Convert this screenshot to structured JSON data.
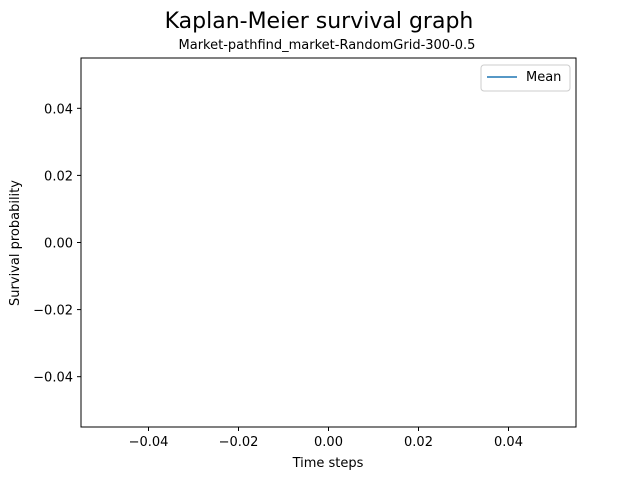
{
  "chart_data": {
    "type": "line",
    "title": "Kaplan-Meier survival graph",
    "subtitle": "Market-pathfind_market-RandomGrid-300-0.5",
    "xlabel": "Time steps",
    "ylabel": "Survival probability",
    "xlim": [
      -0.055,
      0.055
    ],
    "ylim": [
      -0.055,
      0.055
    ],
    "xticks": [
      -0.04,
      -0.02,
      0.0,
      0.02,
      0.04
    ],
    "xtick_labels": [
      "−0.04",
      "−0.02",
      "0.00",
      "0.02",
      "0.04"
    ],
    "yticks": [
      -0.04,
      -0.02,
      0.0,
      0.02,
      0.04
    ],
    "ytick_labels": [
      "−0.04",
      "−0.02",
      "0.00",
      "0.02",
      "0.04"
    ],
    "grid": false,
    "legend_position": "top-right",
    "series": [
      {
        "name": "Mean",
        "color": "#1f77b4",
        "x": [],
        "y": []
      }
    ]
  }
}
